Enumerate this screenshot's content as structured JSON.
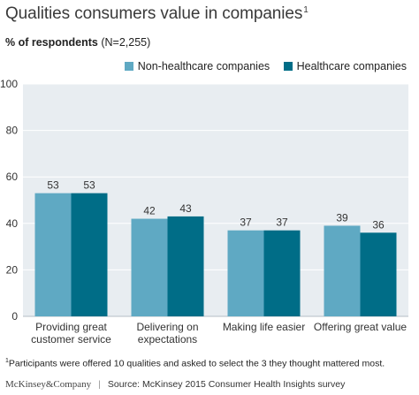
{
  "header": {
    "title": "Qualities consumers value in companies",
    "title_footnote_mark": "1",
    "subtitle_bold": "% of respondents",
    "subtitle_rest": " (N=2,255)"
  },
  "colors": {
    "non_healthcare": "#5fa9c3",
    "healthcare": "#006d87",
    "plot_background": "#e8edf1"
  },
  "chart_data": {
    "type": "bar",
    "categories": [
      [
        "Providing great",
        "customer service"
      ],
      [
        "Delivering on",
        "expectations"
      ],
      [
        "Making life easier"
      ],
      [
        "Offering great value"
      ]
    ],
    "series": [
      {
        "name": "Non-healthcare companies",
        "values": [
          53,
          42,
          37,
          39
        ]
      },
      {
        "name": "Healthcare companies",
        "values": [
          53,
          43,
          37,
          36
        ]
      }
    ],
    "ylim": [
      0,
      100
    ],
    "yticks": [
      0,
      20,
      40,
      60,
      80,
      100
    ],
    "grid": "horizontal",
    "legend": "top-right"
  },
  "footer": {
    "footnote_mark": "1",
    "footnote": "Participants were offered 10 qualities and asked to select the 3 they thought mattered most.",
    "brand": "McKinsey&Company",
    "separator": "|",
    "source": "Source: McKinsey 2015 Consumer Health Insights survey"
  }
}
